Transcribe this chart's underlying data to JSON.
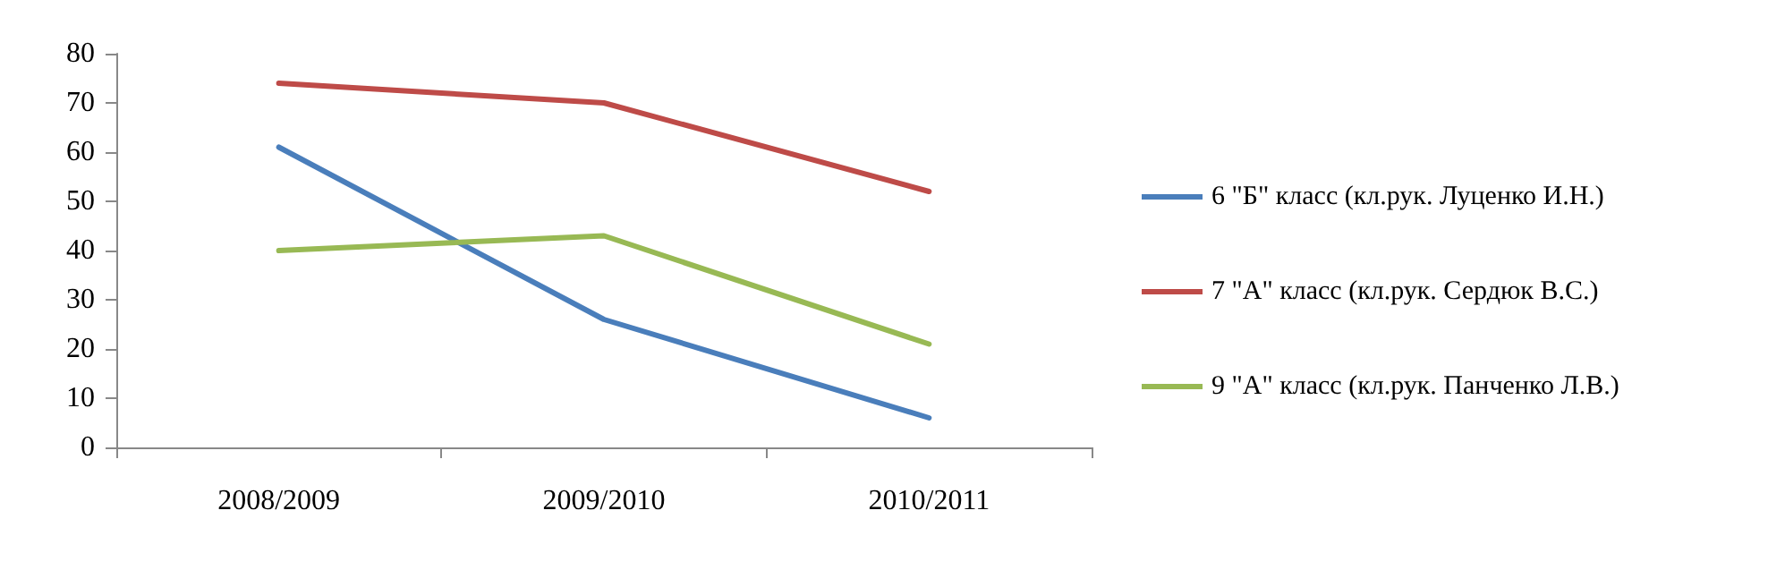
{
  "chart_data": {
    "type": "line",
    "categories": [
      "2008/2009",
      "2009/2010",
      "2010/2011"
    ],
    "series": [
      {
        "name": "6 \"Б\" класс (кл.рук. Луценко И.Н.)",
        "color": "#4a7ebb",
        "values": [
          61,
          26,
          6
        ]
      },
      {
        "name": "7 \"А\" класс (кл.рук. Сердюк В.С.)",
        "color": "#be4b48",
        "values": [
          74,
          70,
          52
        ]
      },
      {
        "name": "9 \"А\" класс (кл.рук. Панченко Л.В.)",
        "color": "#98b954",
        "values": [
          40,
          43,
          21
        ]
      }
    ],
    "ylim": [
      0,
      80
    ],
    "yticks": [
      0,
      10,
      20,
      30,
      40,
      50,
      60,
      70,
      80
    ],
    "grid": false,
    "legend": "right",
    "marker": "none",
    "line_style": "solid"
  }
}
